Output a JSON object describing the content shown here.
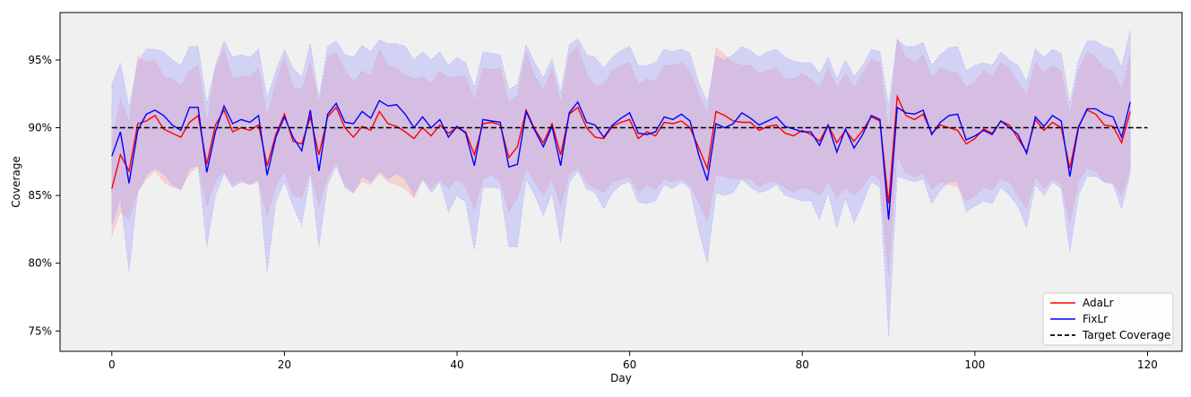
{
  "chart_data": {
    "type": "line",
    "xlabel": "Day",
    "ylabel": "Coverage",
    "xlim": [
      -6,
      124
    ],
    "ylim": [
      0.735,
      0.985
    ],
    "xticks": [
      0,
      20,
      40,
      60,
      80,
      100,
      120
    ],
    "yticks": [
      0.75,
      0.8,
      0.85,
      0.9,
      0.95
    ],
    "ytick_labels": [
      "75%",
      "80%",
      "85%",
      "90%",
      "95%"
    ],
    "grid": false,
    "background": "#f0f0f0",
    "legend": {
      "placement": "bottom-right",
      "entries": [
        {
          "label": "AdaLr",
          "color": "#ff0000",
          "style": "solid"
        },
        {
          "label": "FixLr",
          "color": "#0000ff",
          "style": "solid"
        },
        {
          "label": "Target Coverage",
          "color": "#000000",
          "style": "dashed"
        }
      ]
    },
    "target": {
      "name": "Target Coverage",
      "value": 0.9,
      "color": "#000000"
    },
    "series": [
      {
        "name": "AdaLr",
        "color": "#ff0000",
        "band_color": "#ff9a9a",
        "x": [
          0,
          1,
          2,
          3,
          4,
          5,
          6,
          7,
          8,
          9,
          10,
          11,
          12,
          13,
          14,
          15,
          16,
          17,
          18,
          19,
          20,
          21,
          22,
          23,
          24,
          25,
          26,
          27,
          28,
          29,
          30,
          31,
          32,
          33,
          34,
          35,
          36,
          37,
          38,
          39,
          40,
          41,
          42,
          43,
          44,
          45,
          46,
          47,
          48,
          49,
          50,
          51,
          52,
          53,
          54,
          55,
          56,
          57,
          58,
          59,
          60,
          61,
          62,
          63,
          64,
          65,
          66,
          67,
          68,
          69,
          70,
          71,
          72,
          73,
          74,
          75,
          76,
          77,
          78,
          79,
          80,
          81,
          82,
          83,
          84,
          85,
          86,
          87,
          88,
          89,
          90,
          91,
          92,
          93,
          94,
          95,
          96,
          97,
          98,
          99,
          100,
          101,
          102,
          103,
          104,
          105,
          106,
          107,
          108,
          109,
          110,
          111,
          112,
          113,
          114,
          115,
          116,
          117,
          118
        ],
        "values": [
          0.855,
          0.88,
          0.868,
          0.903,
          0.905,
          0.909,
          0.899,
          0.896,
          0.893,
          0.904,
          0.909,
          0.873,
          0.902,
          0.913,
          0.897,
          0.9,
          0.898,
          0.902,
          0.872,
          0.895,
          0.91,
          0.89,
          0.888,
          0.908,
          0.88,
          0.908,
          0.915,
          0.9,
          0.893,
          0.901,
          0.898,
          0.912,
          0.903,
          0.901,
          0.897,
          0.892,
          0.9,
          0.894,
          0.902,
          0.896,
          0.9,
          0.897,
          0.88,
          0.903,
          0.904,
          0.902,
          0.878,
          0.886,
          0.913,
          0.899,
          0.889,
          0.903,
          0.88,
          0.91,
          0.915,
          0.9,
          0.893,
          0.892,
          0.901,
          0.904,
          0.906,
          0.892,
          0.897,
          0.894,
          0.904,
          0.903,
          0.905,
          0.9,
          0.885,
          0.87,
          0.912,
          0.909,
          0.905,
          0.904,
          0.904,
          0.898,
          0.901,
          0.902,
          0.896,
          0.894,
          0.898,
          0.895,
          0.89,
          0.902,
          0.889,
          0.898,
          0.89,
          0.898,
          0.908,
          0.905,
          0.844,
          0.923,
          0.909,
          0.906,
          0.91,
          0.896,
          0.902,
          0.9,
          0.898,
          0.888,
          0.892,
          0.899,
          0.896,
          0.905,
          0.902,
          0.892,
          0.882,
          0.906,
          0.898,
          0.904,
          0.9,
          0.87,
          0.901,
          0.913,
          0.91,
          0.902,
          0.901,
          0.889,
          0.912
        ],
        "lower": [
          0.82,
          0.838,
          0.832,
          0.853,
          0.862,
          0.868,
          0.86,
          0.856,
          0.855,
          0.866,
          0.872,
          0.842,
          0.861,
          0.868,
          0.858,
          0.862,
          0.858,
          0.86,
          0.835,
          0.857,
          0.868,
          0.85,
          0.848,
          0.868,
          0.842,
          0.864,
          0.874,
          0.858,
          0.852,
          0.86,
          0.858,
          0.866,
          0.86,
          0.858,
          0.855,
          0.848,
          0.862,
          0.855,
          0.862,
          0.855,
          0.862,
          0.856,
          0.84,
          0.862,
          0.865,
          0.86,
          0.838,
          0.848,
          0.87,
          0.86,
          0.85,
          0.862,
          0.842,
          0.866,
          0.87,
          0.86,
          0.855,
          0.852,
          0.86,
          0.862,
          0.864,
          0.852,
          0.858,
          0.854,
          0.862,
          0.86,
          0.862,
          0.858,
          0.845,
          0.83,
          0.865,
          0.864,
          0.862,
          0.862,
          0.862,
          0.856,
          0.86,
          0.86,
          0.856,
          0.852,
          0.856,
          0.854,
          0.85,
          0.86,
          0.848,
          0.856,
          0.85,
          0.856,
          0.866,
          0.862,
          0.79,
          0.88,
          0.866,
          0.864,
          0.866,
          0.855,
          0.86,
          0.858,
          0.856,
          0.846,
          0.85,
          0.856,
          0.854,
          0.862,
          0.86,
          0.85,
          0.84,
          0.864,
          0.855,
          0.862,
          0.858,
          0.83,
          0.86,
          0.87,
          0.868,
          0.86,
          0.86,
          0.85,
          0.87
        ],
        "upper": [
          0.89,
          0.922,
          0.904,
          0.953,
          0.948,
          0.95,
          0.938,
          0.936,
          0.931,
          0.942,
          0.946,
          0.904,
          0.943,
          0.958,
          0.936,
          0.938,
          0.938,
          0.944,
          0.909,
          0.933,
          0.952,
          0.93,
          0.928,
          0.948,
          0.918,
          0.952,
          0.956,
          0.942,
          0.934,
          0.942,
          0.938,
          0.958,
          0.946,
          0.944,
          0.939,
          0.936,
          0.938,
          0.933,
          0.942,
          0.937,
          0.938,
          0.938,
          0.92,
          0.944,
          0.943,
          0.944,
          0.918,
          0.924,
          0.956,
          0.938,
          0.928,
          0.944,
          0.918,
          0.954,
          0.96,
          0.94,
          0.931,
          0.932,
          0.942,
          0.946,
          0.948,
          0.932,
          0.936,
          0.934,
          0.946,
          0.946,
          0.948,
          0.942,
          0.925,
          0.91,
          0.959,
          0.954,
          0.948,
          0.946,
          0.946,
          0.94,
          0.942,
          0.944,
          0.936,
          0.936,
          0.94,
          0.936,
          0.93,
          0.944,
          0.93,
          0.94,
          0.93,
          0.94,
          0.95,
          0.948,
          0.898,
          0.966,
          0.952,
          0.948,
          0.954,
          0.937,
          0.944,
          0.942,
          0.94,
          0.93,
          0.934,
          0.942,
          0.938,
          0.948,
          0.944,
          0.934,
          0.924,
          0.948,
          0.941,
          0.946,
          0.942,
          0.91,
          0.942,
          0.956,
          0.952,
          0.944,
          0.942,
          0.928,
          0.954
        ]
      },
      {
        "name": "FixLr",
        "color": "#0000ff",
        "band_color": "#9a9aff",
        "x": [
          0,
          1,
          2,
          3,
          4,
          5,
          6,
          7,
          8,
          9,
          10,
          11,
          12,
          13,
          14,
          15,
          16,
          17,
          18,
          19,
          20,
          21,
          22,
          23,
          24,
          25,
          26,
          27,
          28,
          29,
          30,
          31,
          32,
          33,
          34,
          35,
          36,
          37,
          38,
          39,
          40,
          41,
          42,
          43,
          44,
          45,
          46,
          47,
          48,
          49,
          50,
          51,
          52,
          53,
          54,
          55,
          56,
          57,
          58,
          59,
          60,
          61,
          62,
          63,
          64,
          65,
          66,
          67,
          68,
          69,
          70,
          71,
          72,
          73,
          74,
          75,
          76,
          77,
          78,
          79,
          80,
          81,
          82,
          83,
          84,
          85,
          86,
          87,
          88,
          89,
          90,
          91,
          92,
          93,
          94,
          95,
          96,
          97,
          98,
          99,
          100,
          101,
          102,
          103,
          104,
          105,
          106,
          107,
          108,
          109,
          110,
          111,
          112,
          113,
          114,
          115,
          116,
          117,
          118
        ],
        "values": [
          0.879,
          0.897,
          0.859,
          0.898,
          0.91,
          0.913,
          0.909,
          0.902,
          0.898,
          0.915,
          0.915,
          0.867,
          0.897,
          0.916,
          0.903,
          0.906,
          0.904,
          0.909,
          0.865,
          0.893,
          0.908,
          0.893,
          0.883,
          0.913,
          0.868,
          0.91,
          0.918,
          0.904,
          0.903,
          0.912,
          0.907,
          0.92,
          0.916,
          0.917,
          0.91,
          0.9,
          0.908,
          0.9,
          0.906,
          0.893,
          0.901,
          0.896,
          0.872,
          0.906,
          0.905,
          0.904,
          0.871,
          0.873,
          0.912,
          0.898,
          0.886,
          0.901,
          0.872,
          0.911,
          0.919,
          0.904,
          0.902,
          0.893,
          0.902,
          0.907,
          0.911,
          0.896,
          0.895,
          0.897,
          0.908,
          0.906,
          0.91,
          0.905,
          0.88,
          0.861,
          0.903,
          0.9,
          0.903,
          0.911,
          0.907,
          0.902,
          0.905,
          0.908,
          0.901,
          0.899,
          0.897,
          0.897,
          0.887,
          0.902,
          0.882,
          0.899,
          0.885,
          0.895,
          0.909,
          0.906,
          0.832,
          0.915,
          0.911,
          0.91,
          0.913,
          0.895,
          0.904,
          0.909,
          0.91,
          0.891,
          0.894,
          0.898,
          0.895,
          0.905,
          0.9,
          0.895,
          0.881,
          0.908,
          0.901,
          0.909,
          0.905,
          0.864,
          0.9,
          0.914,
          0.914,
          0.91,
          0.908,
          0.893,
          0.919
        ],
        "lower": [
          0.828,
          0.848,
          0.794,
          0.852,
          0.865,
          0.87,
          0.866,
          0.858,
          0.854,
          0.87,
          0.872,
          0.812,
          0.85,
          0.866,
          0.856,
          0.86,
          0.858,
          0.862,
          0.793,
          0.845,
          0.86,
          0.842,
          0.828,
          0.866,
          0.812,
          0.858,
          0.872,
          0.856,
          0.852,
          0.864,
          0.86,
          0.868,
          0.862,
          0.866,
          0.862,
          0.85,
          0.862,
          0.852,
          0.86,
          0.838,
          0.85,
          0.845,
          0.81,
          0.856,
          0.856,
          0.855,
          0.812,
          0.812,
          0.862,
          0.85,
          0.835,
          0.852,
          0.815,
          0.86,
          0.868,
          0.855,
          0.852,
          0.84,
          0.852,
          0.858,
          0.86,
          0.845,
          0.844,
          0.846,
          0.858,
          0.855,
          0.86,
          0.855,
          0.824,
          0.8,
          0.852,
          0.85,
          0.852,
          0.862,
          0.856,
          0.852,
          0.854,
          0.858,
          0.85,
          0.848,
          0.846,
          0.846,
          0.832,
          0.852,
          0.826,
          0.848,
          0.83,
          0.844,
          0.86,
          0.856,
          0.746,
          0.864,
          0.862,
          0.86,
          0.862,
          0.844,
          0.854,
          0.86,
          0.86,
          0.838,
          0.842,
          0.846,
          0.844,
          0.856,
          0.85,
          0.842,
          0.826,
          0.858,
          0.85,
          0.86,
          0.855,
          0.808,
          0.85,
          0.864,
          0.864,
          0.86,
          0.858,
          0.84,
          0.866
        ],
        "upper": [
          0.932,
          0.948,
          0.915,
          0.948,
          0.958,
          0.958,
          0.956,
          0.95,
          0.946,
          0.96,
          0.96,
          0.918,
          0.946,
          0.964,
          0.952,
          0.954,
          0.952,
          0.958,
          0.922,
          0.942,
          0.958,
          0.944,
          0.937,
          0.962,
          0.922,
          0.96,
          0.964,
          0.954,
          0.952,
          0.961,
          0.956,
          0.965,
          0.962,
          0.962,
          0.96,
          0.95,
          0.956,
          0.95,
          0.956,
          0.946,
          0.952,
          0.948,
          0.93,
          0.956,
          0.955,
          0.954,
          0.928,
          0.932,
          0.961,
          0.948,
          0.937,
          0.951,
          0.926,
          0.961,
          0.966,
          0.954,
          0.952,
          0.944,
          0.952,
          0.957,
          0.96,
          0.946,
          0.946,
          0.948,
          0.958,
          0.956,
          0.958,
          0.955,
          0.933,
          0.919,
          0.953,
          0.95,
          0.954,
          0.96,
          0.957,
          0.952,
          0.956,
          0.958,
          0.952,
          0.949,
          0.948,
          0.948,
          0.94,
          0.952,
          0.936,
          0.95,
          0.938,
          0.946,
          0.958,
          0.956,
          0.916,
          0.965,
          0.96,
          0.96,
          0.963,
          0.946,
          0.954,
          0.959,
          0.96,
          0.942,
          0.946,
          0.948,
          0.946,
          0.956,
          0.95,
          0.946,
          0.934,
          0.958,
          0.952,
          0.958,
          0.955,
          0.918,
          0.95,
          0.964,
          0.964,
          0.96,
          0.958,
          0.945,
          0.972
        ]
      }
    ]
  }
}
